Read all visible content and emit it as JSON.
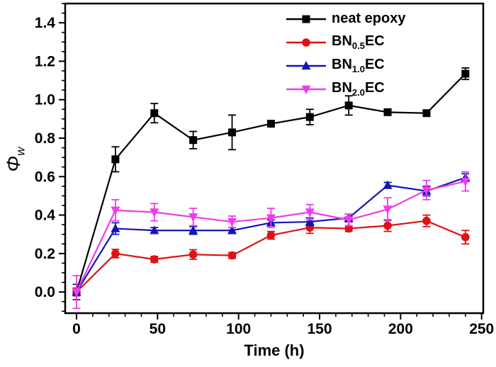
{
  "figure": {
    "background": "#ffffff"
  },
  "chart_data": {
    "type": "line",
    "title": "",
    "xlabel": "Time (h)",
    "ylabel": {
      "symbol": "Φ",
      "subscript": "w"
    },
    "xlim": [
      -7,
      251
    ],
    "ylim": [
      -0.11,
      1.5
    ],
    "x_major_ticks": [
      0,
      50,
      100,
      150,
      200,
      250
    ],
    "x_minor_step": 10,
    "y_major_ticks": [
      "0.0",
      "0.2",
      "0.4",
      "0.6",
      "0.8",
      "1.0",
      "1.2",
      "1.4"
    ],
    "y_minor_step": 0.05,
    "grid": false,
    "legend_position": "top-right-inside",
    "x": [
      0,
      24,
      48,
      72,
      96,
      120,
      144,
      168,
      192,
      216,
      240
    ],
    "series": [
      {
        "name": "neat epoxy",
        "label_parts": {
          "pre": "neat epoxy",
          "sub": "",
          "post": ""
        },
        "color": "#000000",
        "marker": "square",
        "values": [
          0.0,
          0.69,
          0.93,
          0.79,
          0.83,
          0.875,
          0.91,
          0.97,
          0.935,
          0.93,
          1.135
        ],
        "errors": [
          0.02,
          0.065,
          0.05,
          0.045,
          0.09,
          0.012,
          0.04,
          0.05,
          0.015,
          0.015,
          0.03
        ]
      },
      {
        "name": "BN0.5EC",
        "label_parts": {
          "pre": "BN",
          "sub": "0.5",
          "post": "EC"
        },
        "color": "#e01114",
        "marker": "circle",
        "values": [
          0.0,
          0.2,
          0.17,
          0.195,
          0.19,
          0.295,
          0.335,
          0.33,
          0.345,
          0.37,
          0.285
        ],
        "errors": [
          0.02,
          0.022,
          0.015,
          0.025,
          0.015,
          0.02,
          0.03,
          0.015,
          0.03,
          0.03,
          0.035
        ]
      },
      {
        "name": "BN1.0EC",
        "label_parts": {
          "pre": "BN",
          "sub": "1.0",
          "post": "EC"
        },
        "color": "#1414b4",
        "marker": "triangle-up",
        "values": [
          0.0,
          0.33,
          0.32,
          0.32,
          0.32,
          0.36,
          0.365,
          0.385,
          0.555,
          0.525,
          0.595
        ],
        "errors": [
          0.04,
          0.03,
          0.015,
          0.02,
          0.015,
          0.015,
          0.02,
          0.02,
          0.015,
          0.025,
          0.02
        ]
      },
      {
        "name": "BN2.0EC",
        "label_parts": {
          "pre": "BN",
          "sub": "2.0",
          "post": "EC"
        },
        "color": "#ee3ceb",
        "marker": "triangle-down",
        "values": [
          0.0,
          0.425,
          0.415,
          0.39,
          0.365,
          0.385,
          0.415,
          0.375,
          0.43,
          0.53,
          0.575
        ],
        "errors": [
          0.085,
          0.055,
          0.045,
          0.045,
          0.03,
          0.05,
          0.04,
          0.03,
          0.06,
          0.05,
          0.05
        ]
      }
    ]
  }
}
